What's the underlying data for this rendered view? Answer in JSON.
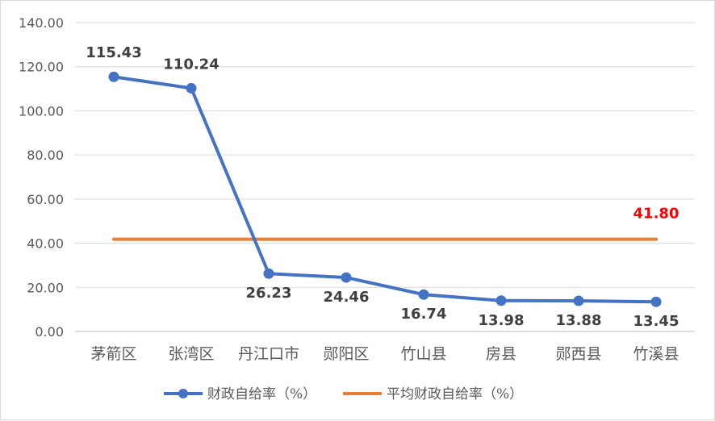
{
  "chart_data": {
    "type": "line",
    "categories": [
      "茅箭区",
      "张湾区",
      "丹江口市",
      "郧阳区",
      "竹山县",
      "房县",
      "郧西县",
      "竹溪县"
    ],
    "series": [
      {
        "name": "财政自给率（%）",
        "values": [
          115.43,
          110.24,
          26.23,
          24.46,
          16.74,
          13.98,
          13.88,
          13.45
        ],
        "labels": [
          "115.43",
          "110.24",
          "26.23",
          "24.46",
          "16.74",
          "13.98",
          "13.88",
          "13.45"
        ],
        "color": "#4472C4",
        "marker": "circle"
      },
      {
        "name": "平均财政自给率（%）",
        "values": [
          41.8,
          41.8,
          41.8,
          41.8,
          41.8,
          41.8,
          41.8,
          41.8
        ],
        "label": "41.80",
        "label_color": "#FF0000",
        "color": "#ED7D31",
        "marker": "none"
      }
    ],
    "ylim": [
      0,
      140
    ],
    "yticks": [
      "0.00",
      "20.00",
      "40.00",
      "60.00",
      "80.00",
      "100.00",
      "120.00",
      "140.00"
    ],
    "grid": true,
    "legend_position": "bottom",
    "title": "",
    "xlabel": "",
    "ylabel": ""
  }
}
